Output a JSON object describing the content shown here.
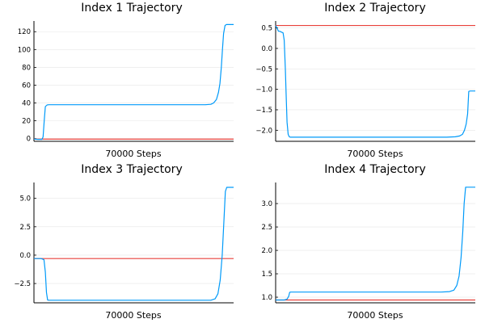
{
  "chart_data": [
    {
      "type": "line",
      "title": "Index 1 Trajectory",
      "xlabel": "70000 Steps",
      "ylabel": "",
      "ylim": [
        -3,
        132
      ],
      "yticks": [
        0,
        20,
        40,
        60,
        80,
        100,
        120
      ],
      "ytick_labels": [
        "0",
        "20",
        "40",
        "60",
        "80",
        "100",
        "120"
      ],
      "grid": true,
      "series": [
        {
          "color": "#009af9",
          "x": [
            0,
            1400,
            2800,
            3200,
            3600,
            4000,
            4600,
            5200,
            60000,
            62000,
            63000,
            64000,
            64700,
            65200,
            65700,
            66100,
            66500,
            67000,
            67500,
            70000
          ],
          "values": [
            -0.5,
            -0.8,
            -0.8,
            2,
            20,
            36,
            37.8,
            38,
            38,
            38.5,
            40,
            44,
            52,
            62,
            80,
            100,
            118,
            127,
            128,
            128
          ]
        }
      ],
      "hlines": [
        {
          "y": -0.5,
          "color": "#e8413b"
        }
      ]
    },
    {
      "type": "line",
      "title": "Index 2 Trajectory",
      "xlabel": "70000 Steps",
      "ylabel": "",
      "ylim": [
        -2.27,
        0.67
      ],
      "yticks": [
        0.5,
        0.0,
        -0.5,
        -1.0,
        -1.5,
        -2.0
      ],
      "ytick_labels": [
        "0.5",
        "0.0",
        "−0.5",
        "−1.0",
        "−1.5",
        "−2.0"
      ],
      "grid": true,
      "series": [
        {
          "color": "#009af9",
          "x": [
            0,
            600,
            1000,
            1400,
            2600,
            3000,
            3400,
            3700,
            4000,
            4400,
            4800,
            5200,
            5500,
            60000,
            63000,
            64500,
            65500,
            66200,
            66800,
            67300,
            67700,
            68200,
            70000
          ],
          "values": [
            0.56,
            0.48,
            0.42,
            0.42,
            0.38,
            0.2,
            -0.5,
            -1.2,
            -1.8,
            -2.1,
            -2.16,
            -2.17,
            -2.17,
            -2.17,
            -2.16,
            -2.14,
            -2.1,
            -2.0,
            -1.85,
            -1.6,
            -1.05,
            -1.04,
            -1.04
          ]
        }
      ],
      "hlines": [
        {
          "y": 0.56,
          "color": "#e8413b"
        }
      ]
    },
    {
      "type": "line",
      "title": "Index 3 Trajectory",
      "xlabel": "70000 Steps",
      "ylabel": "",
      "ylim": [
        -4.2,
        6.4
      ],
      "yticks": [
        5.0,
        2.5,
        0.0,
        -2.5
      ],
      "ytick_labels": [
        "5.0",
        "2.5",
        "0.0",
        "−2.5"
      ],
      "grid": true,
      "series": [
        {
          "color": "#009af9",
          "x": [
            0,
            2500,
            3500,
            4000,
            4400,
            4800,
            5200,
            62000,
            63500,
            64500,
            65300,
            66000,
            66600,
            67100,
            67600,
            70000
          ],
          "values": [
            -0.3,
            -0.3,
            -0.4,
            -1.5,
            -3.3,
            -3.95,
            -3.97,
            -3.97,
            -3.85,
            -3.4,
            -2.2,
            0.0,
            3.0,
            5.6,
            5.97,
            5.97
          ]
        }
      ],
      "hlines": [
        {
          "y": -0.3,
          "color": "#e8413b"
        }
      ]
    },
    {
      "type": "line",
      "title": "Index 4 Trajectory",
      "xlabel": "70000 Steps",
      "ylabel": "",
      "ylim": [
        0.88,
        3.45
      ],
      "yticks": [
        3.0,
        2.5,
        2.0,
        1.5,
        1.0
      ],
      "ytick_labels": [
        "3.0",
        "2.5",
        "2.0",
        "1.5",
        "1.0"
      ],
      "grid": true,
      "series": [
        {
          "color": "#009af9",
          "x": [
            0,
            3000,
            4000,
            4600,
            4900,
            5200,
            58000,
            61000,
            62500,
            63500,
            64300,
            65000,
            65600,
            66100,
            66600,
            70000
          ],
          "values": [
            0.94,
            0.94,
            0.96,
            1.02,
            1.1,
            1.11,
            1.11,
            1.12,
            1.15,
            1.25,
            1.45,
            1.85,
            2.4,
            3.0,
            3.35,
            3.35
          ]
        }
      ],
      "hlines": [
        {
          "y": 0.94,
          "color": "#e8413b"
        }
      ]
    }
  ]
}
